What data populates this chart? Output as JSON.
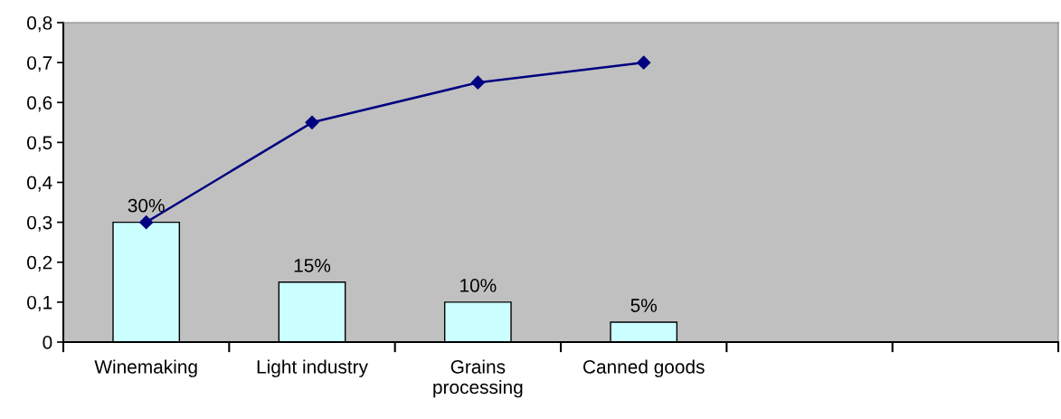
{
  "chart_data": {
    "type": "bar",
    "categories": [
      "Winemaking",
      "Light industry",
      "Grains\nprocessing",
      "Canned goods",
      null,
      null
    ],
    "series": [
      {
        "color": "#ccffff",
        "values": [
          0.3,
          0.15,
          0.1,
          0.05,
          null,
          null
        ],
        "value_labels": [
          "30%",
          "15%",
          "10%",
          "5%",
          null,
          null
        ]
      },
      {
        "type": "line",
        "color": "#000080",
        "marker": "diamond",
        "line_style": "solid",
        "values": [
          0.3,
          0.55,
          0.65,
          0.7,
          null,
          null
        ]
      }
    ],
    "ylim": [
      0,
      0.8
    ],
    "yticks": [
      {
        "value": 0,
        "label": "0"
      },
      {
        "value": 0.1,
        "label": "0,1"
      },
      {
        "value": 0.2,
        "label": "0,2"
      },
      {
        "value": 0.3,
        "label": "0,3"
      },
      {
        "value": 0.4,
        "label": "0,4"
      },
      {
        "value": 0.5,
        "label": "0,5"
      },
      {
        "value": 0.6,
        "label": "0,6"
      },
      {
        "value": 0.7,
        "label": "0,7"
      },
      {
        "value": 0.8,
        "label": "0,8"
      }
    ],
    "grid": false
  }
}
